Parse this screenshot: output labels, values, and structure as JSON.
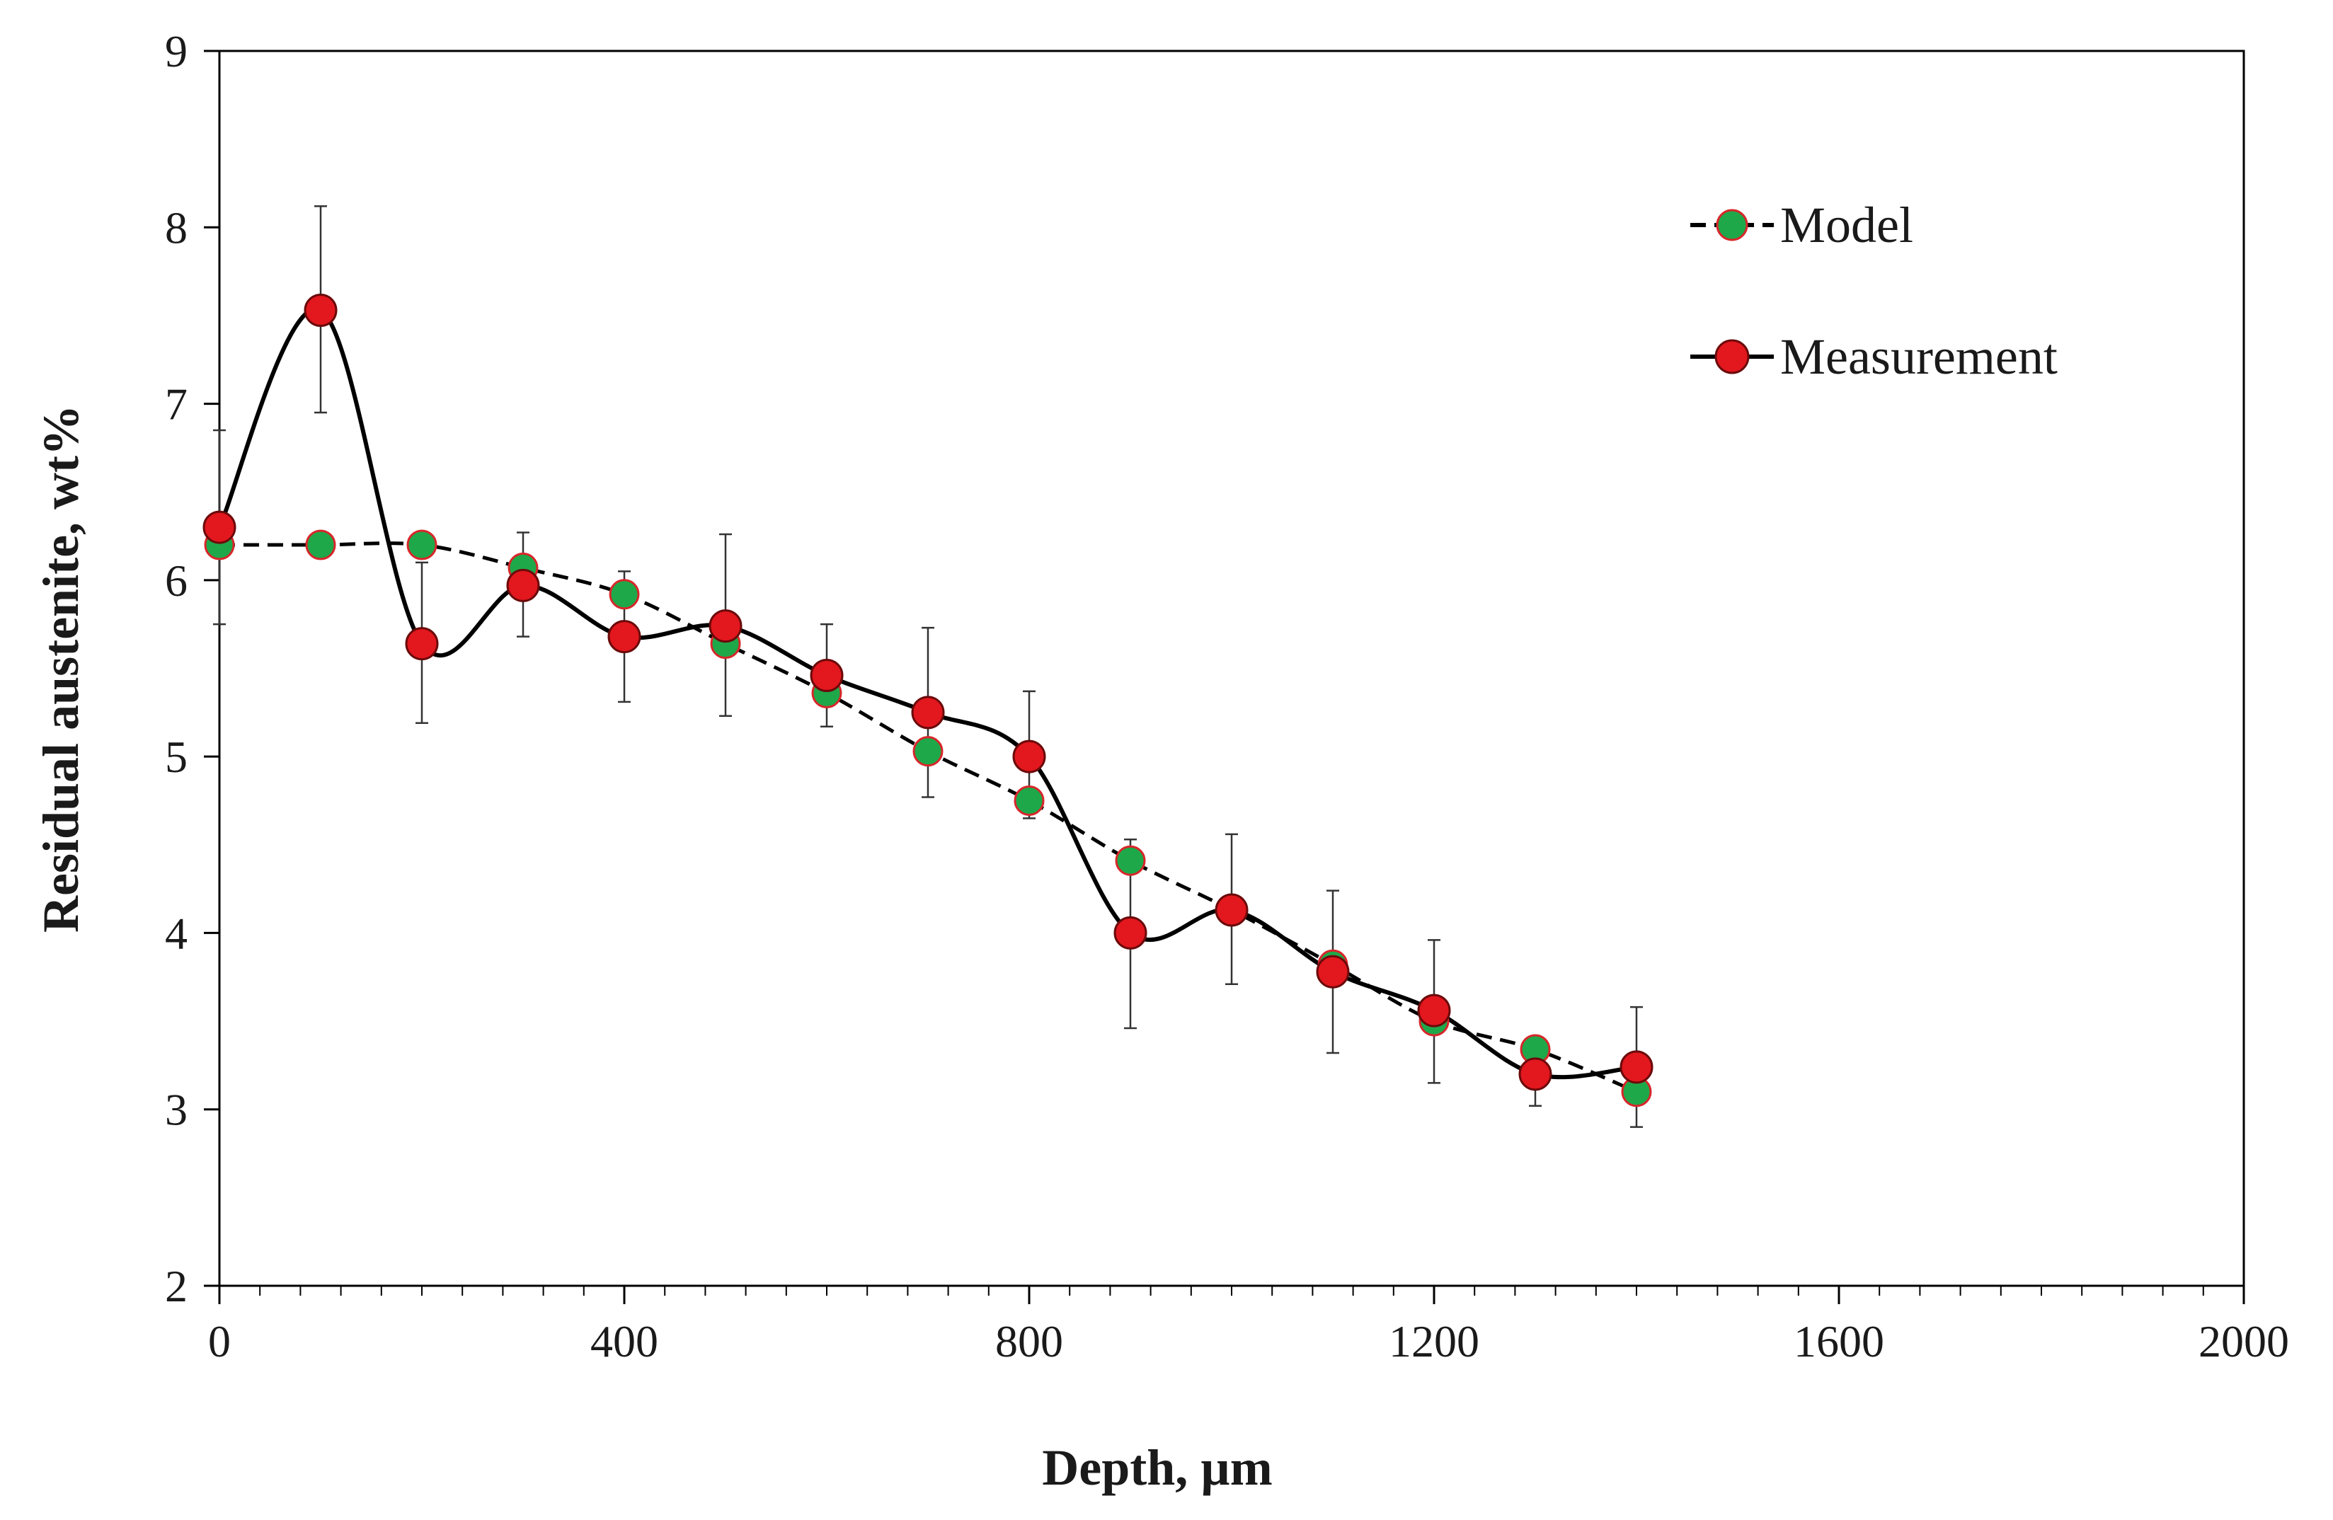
{
  "chart_data": {
    "type": "line",
    "title": "",
    "xlabel": "Depth, µm",
    "ylabel": "Residual austenite, wt%",
    "xlim": [
      0,
      2000
    ],
    "ylim": [
      2,
      9
    ],
    "xticks": [
      0,
      400,
      800,
      1200,
      1600,
      2000
    ],
    "yticks": [
      2,
      3,
      4,
      5,
      6,
      7,
      8,
      9
    ],
    "x_minor_step": 40,
    "grid": false,
    "legend_position": "top-right",
    "series": [
      {
        "name": "Model",
        "line_style": "dashed",
        "marker_color": "#1fa84a",
        "marker_edge": "#d8262a",
        "line_color": "#000000",
        "x": [
          0,
          100,
          200,
          300,
          400,
          500,
          600,
          700,
          800,
          900,
          1000,
          1100,
          1200,
          1300,
          1400
        ],
        "y": [
          6.2,
          6.2,
          6.2,
          6.07,
          5.92,
          5.64,
          5.36,
          5.03,
          4.75,
          4.41,
          4.13,
          3.82,
          3.5,
          3.34,
          3.1
        ]
      },
      {
        "name": "Measurement",
        "line_style": "solid-smooth",
        "marker_color": "#e3171e",
        "marker_edge": "#6b0a0a",
        "line_color": "#000000",
        "x": [
          0,
          100,
          200,
          300,
          400,
          500,
          600,
          700,
          800,
          900,
          1000,
          1100,
          1200,
          1300,
          1400
        ],
        "y": [
          6.3,
          7.53,
          5.64,
          5.97,
          5.68,
          5.74,
          5.46,
          5.25,
          5.0,
          4.0,
          4.13,
          3.78,
          3.56,
          3.2,
          3.24
        ],
        "error_low": [
          5.75,
          6.95,
          5.19,
          5.68,
          5.31,
          5.23,
          5.17,
          4.77,
          4.65,
          3.46,
          3.71,
          3.32,
          3.15,
          3.02,
          2.9
        ],
        "error_high": [
          6.85,
          8.12,
          6.1,
          6.27,
          6.05,
          6.26,
          5.75,
          5.73,
          5.37,
          4.53,
          4.56,
          4.24,
          3.96,
          3.38,
          3.58
        ]
      }
    ]
  }
}
